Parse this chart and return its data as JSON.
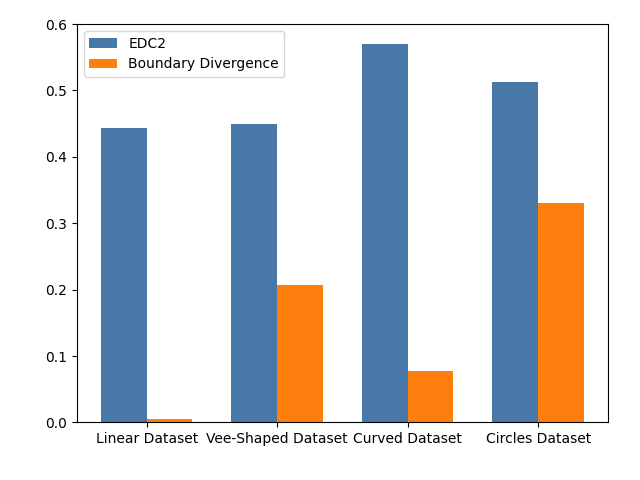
{
  "categories": [
    "Linear Dataset",
    "Vee-Shaped Dataset",
    "Curved Dataset",
    "Circles Dataset"
  ],
  "edc2_values": [
    0.444,
    0.449,
    0.57,
    0.512
  ],
  "boundary_divergence_values": [
    0.005,
    0.207,
    0.077,
    0.33
  ],
  "edc2_color": "#4878a8",
  "boundary_divergence_color": "#ff7f0e",
  "legend_labels": [
    "EDC2",
    "Boundary Divergence"
  ],
  "ylim": [
    0.0,
    0.6
  ],
  "yticks": [
    0.0,
    0.1,
    0.2,
    0.3,
    0.4,
    0.5,
    0.6
  ],
  "bar_width": 0.35,
  "figsize": [
    6.4,
    4.8
  ],
  "dpi": 100,
  "figure_bg": "#ffffff",
  "axes_bg": "#ffffff"
}
